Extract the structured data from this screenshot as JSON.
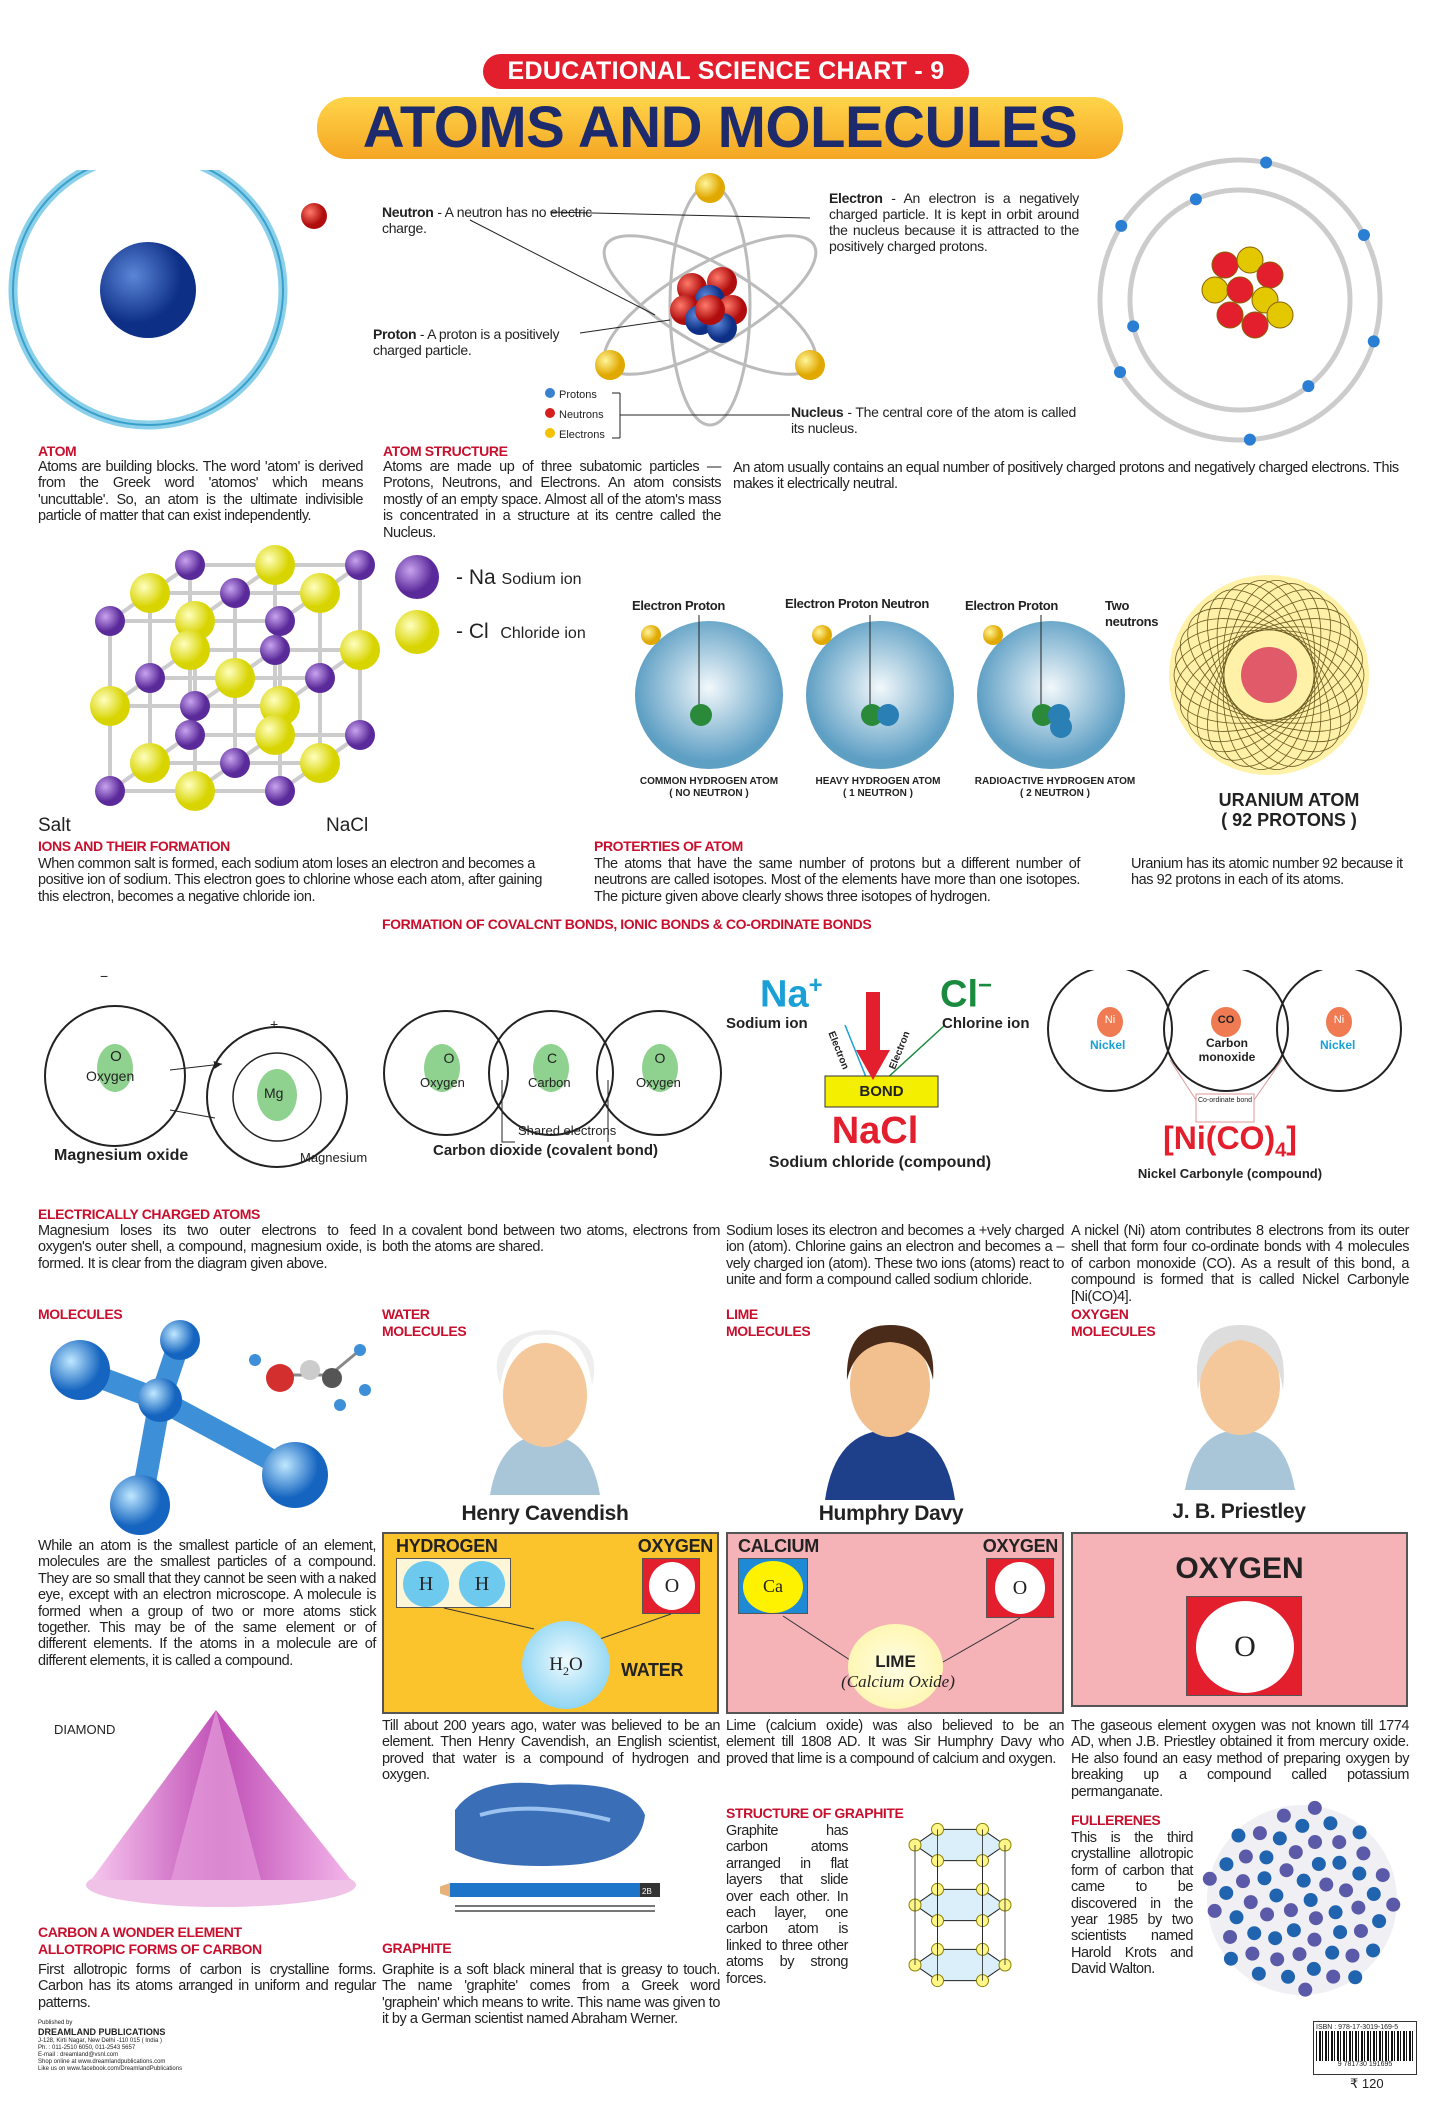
{
  "header": {
    "series": "EDUCATIONAL SCIENCE  CHART - 9",
    "title": "ATOMS AND MOLECULES"
  },
  "atom": {
    "heading": "ATOM",
    "text": "Atoms are building blocks. The word 'atom' is derived from the Greek word 'atomos' which means 'uncuttable'. So, an atom is the ultimate indivisible particle of matter that can exist independently."
  },
  "atom_structure": {
    "heading": "ATOM STRUCTURE",
    "text": "Atoms are made up of three subatomic particles — Protons, Neutrons, and Electrons. An atom consists mostly of an empty space. Almost all of the atom's mass is concentrated in a structure at its centre called the Nucleus.",
    "neutron_label": "Neutron",
    "neutron_text": " - A neutron has no electric charge.",
    "proton_label": "Proton",
    "proton_text": " - A proton is a positively charged particle.",
    "electron_label": "Electron",
    "electron_text": " - An electron is a negatively charged particle. It is kept in orbit around the nucleus because it is attracted to the positively charged protons.",
    "nucleus_label": "Nucleus",
    "nucleus_text": " - The central core of the atom is called its nucleus.",
    "legend": [
      "Protons",
      "Neutrons",
      "Electrons"
    ],
    "neutral_text": "An atom usually contains an equal number of positively charged protons and negatively charged electrons. This makes it electrically neutral."
  },
  "salt": {
    "na_symbol": "- Na",
    "na_label": "Sodium ion",
    "cl_symbol": "- Cl",
    "cl_label": "Chloride ion",
    "salt": "Salt",
    "nacl": "NaCl"
  },
  "isotopes": {
    "items": [
      {
        "labels": [
          "Electron",
          "Proton"
        ],
        "name": "COMMON HYDROGEN  ATOM",
        "note": "( NO NEUTRON )"
      },
      {
        "labels": [
          "Electron",
          "Proton",
          "Neutron"
        ],
        "name": "HEAVY  HYDROGEN  ATOM",
        "note": "( 1 NEUTRON )"
      },
      {
        "labels": [
          "Electron",
          "Proton",
          "Two neutrons"
        ],
        "name": "RADIOACTIVE  HYDROGEN  ATOM",
        "note": "( 2  NEUTRON )"
      }
    ]
  },
  "uranium": {
    "name": "URANIUM  ATOM",
    "protons": "( 92 PROTONS )",
    "text": "Uranium has its atomic number 92 because it has 92 protons in each of its atoms."
  },
  "ions": {
    "heading": "IONS AND THEIR FORMATION",
    "text": "When common salt is formed, each sodium atom loses an electron and becomes a positive ion of sodium.  This electron goes to chlorine whose each atom, after gaining this electron, becomes a negative chloride ion."
  },
  "properties": {
    "heading": "PROTERTIES OF ATOM",
    "text": "The atoms that have the same number of protons but a different number of neutrons are called isotopes.  Most of the elements have more than one isotopes.  The picture given above clearly shows three isotopes of hydrogen."
  },
  "bonds": {
    "heading": "FORMATION OF COVALCNT BONDS, IONIC BONDS & CO-ORDINATE BONDS",
    "mgo": {
      "o": "O",
      "oxygen": "Oxygen",
      "mg": "Mg",
      "magnesium": "Magnesium",
      "plus": "+",
      "minus": "−",
      "caption": "Magnesium oxide"
    },
    "co2": {
      "o": "O",
      "oxygen": "Oxygen",
      "c": "C",
      "carbon": "Carbon",
      "shared": "Shared electrons",
      "caption": "Carbon dioxide (covalent bond)"
    },
    "ionic": {
      "na": "Na",
      "na_charge": "+",
      "cl": "Cl",
      "cl_charge": "−",
      "sodium_ion": "Sodium  ion",
      "chlorine_ion": "Chlorine  ion",
      "electron": "Electron",
      "bond": "BOND",
      "formula": "NaCl",
      "caption": "Sodium chloride (compound)"
    },
    "coord": {
      "ni": "Ni",
      "nickel": "Nickel",
      "co": "CO",
      "carbon_monoxide": "Carbon monoxide",
      "coord_bond": "Co-ordinate bond",
      "formula": "[Ni(CO)",
      "formula_sub": "4",
      "formula_end": "]",
      "caption": "Nickel  Carbonyle  (compound)"
    }
  },
  "charged": {
    "heading": "ELECTRICALLY CHARGED ATOMS",
    "texts": [
      "Magnesium loses its two outer electrons to feed oxygen's outer shell, a compound, magnesium oxide, is formed.  It is clear from the diagram given above.",
      "In a covalent bond between two atoms, electrons from both the atoms are shared.",
      "Sodium loses its electron and becomes a +vely charged ion (atom). Chlorine gains an electron and becomes a –vely charged ion (atom). These two ions (atoms) react to unite and form a compound called sodium chloride.",
      "A nickel (Ni) atom contributes 8 electrons from its outer shell that form four co-ordinate bonds with 4 molecules of carbon monoxide (CO).  As a result of this bond, a compound is formed that is called Nickel Carbonyle [Ni(CO)4]."
    ]
  },
  "molecules": {
    "heading": "MOLECULES",
    "text": "While an atom is the smallest particle of an element, molecules are the smallest particles of a compound. They are so small that they cannot be seen with a naked eye, except with an electron microscope. A molecule is formed when a group of two or more atoms stick together. This may be of the same element or of different elements. If the atoms in a molecule are of different elements, it is called a compound."
  },
  "water": {
    "heading1": "WATER",
    "heading2": "MOLECULES",
    "scientist": "Henry Cavendish",
    "left": "HYDROGEN",
    "right": "OXYGEN",
    "h": "H",
    "o": "O",
    "product": "H",
    "product_sub": "2",
    "product_end": "O",
    "product_name": "WATER",
    "text": "Till about 200 years ago, water was believed to be an element. Then Henry Cavendish, an English scientist, proved that water is a compound of hydrogen and oxygen.",
    "color": "#fcc42c"
  },
  "lime": {
    "heading1": "LIME",
    "heading2": "MOLECULES",
    "scientist": "Humphry Davy",
    "left": "CALCIUM",
    "right": "OXYGEN",
    "ca": "Ca",
    "o": "O",
    "product": "LIME",
    "product_sub": "(Calcium Oxide)",
    "text": "Lime (calcium oxide) was also believed to be an element till 1808 AD. It was Sir Humphry Davy who proved that lime is a compound of calcium and oxygen.",
    "color": "#f5b3b8"
  },
  "oxygen": {
    "heading1": "OXYGEN",
    "heading2": "MOLECULES",
    "scientist": "J. B. Priestley",
    "label": "OXYGEN",
    "o": "O",
    "text": "The gaseous element oxygen was not known till 1774 AD, when J.B. Priestley obtained it from mercury oxide. He also found an easy method of preparing oxygen by breaking up a compound called potassium permanganate.",
    "color": "#f5b3b8"
  },
  "diamond": {
    "label": "DIAMOND"
  },
  "carbon": {
    "heading1": "CARBON A WONDER ELEMENT",
    "heading2": "ALLOTROPIC FORMS OF CARBON",
    "text": "First allotropic forms of carbon is crystalline forms. Carbon has its atoms arranged in uniform and regular patterns."
  },
  "graphite": {
    "heading": "GRAPHITE",
    "text": "Graphite is a soft black mineral that is greasy to touch. The name 'graphite' comes from a Greek word 'graphein' which means to write. This name was given to it by a German scientist named Abraham Werner.",
    "pencil_mark": "2B"
  },
  "structure_graphite": {
    "heading": "STRUCTURE OF GRAPHITE",
    "text": "Graphite has carbon atoms arranged in flat layers that slide over each other. In each layer, one carbon atom is linked to three other atoms by strong forces."
  },
  "fullerenes": {
    "heading": "FULLERENES",
    "text": "This is the third crystalline allotropic form of carbon that came to be discovered in the year 1985 by two scientists named Harold Krots and David Walton."
  },
  "publisher": {
    "published_by": "Published by",
    "name": "DREAMLAND  PUBLICATIONS",
    "lines": [
      "J-128, Kirti Nagar, New Delhi -110 015 ( India )",
      "Ph. : 011-2510 6050, 011-2543 5657",
      "E-mail : dreamland@vsnl.com",
      "Shop online at www.dreamlandpublications.com",
      "Like us on www.facebook.com/DreamlandPublications"
    ]
  },
  "isbn": {
    "label": "ISBN : 978-17-3019-169-5",
    "digits": "9 781730 191695",
    "price": "₹ 120"
  },
  "colors": {
    "heading_red": "#c8102e",
    "title_navy": "#1d2a6b",
    "series_red": "#e31e2d",
    "title_yellow": "#fcc42c"
  }
}
